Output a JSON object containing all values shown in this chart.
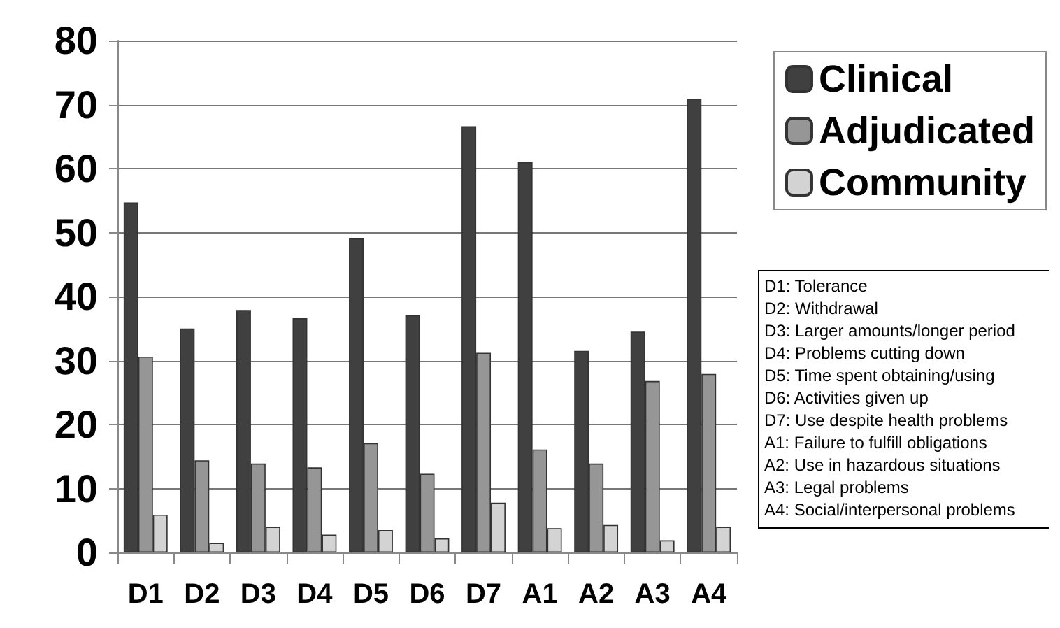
{
  "chart_data": {
    "type": "bar",
    "categories": [
      "D1",
      "D2",
      "D3",
      "D4",
      "D5",
      "D6",
      "D7",
      "A1",
      "A2",
      "A3",
      "A4"
    ],
    "series": [
      {
        "name": "Clinical",
        "color": "#404040",
        "values": [
          54.7,
          35,
          37.9,
          36.6,
          49.1,
          37.1,
          66.6,
          61,
          31.5,
          34.5,
          70.9
        ]
      },
      {
        "name": "Adjudicated",
        "color": "#969696",
        "values": [
          30.6,
          14.4,
          13.9,
          13.3,
          17.1,
          12.3,
          31.2,
          16.1,
          13.9,
          26.8,
          27.9
        ]
      },
      {
        "name": "Community",
        "color": "#d3d3d3",
        "values": [
          5.9,
          1.5,
          4.0,
          2.8,
          3.5,
          2.2,
          7.8,
          3.8,
          4.3,
          1.9,
          4.0
        ]
      }
    ],
    "ylim": [
      0,
      80
    ],
    "yticks": [
      0,
      10,
      20,
      30,
      40,
      50,
      60,
      70,
      80
    ],
    "grid": "y",
    "legend": "top right",
    "annotations": [
      "D1: Tolerance",
      "D2: Withdrawal",
      "D3: Larger amounts/longer period",
      "D4: Problems cutting down",
      "D5: Time spent obtaining/using",
      "D6: Activities given up",
      "D7: Use despite health problems",
      "A1: Failure to fulfill obligations",
      "A2: Use in hazardous situations",
      "A3: Legal problems",
      "A4: Social/interpersonal problems"
    ]
  }
}
